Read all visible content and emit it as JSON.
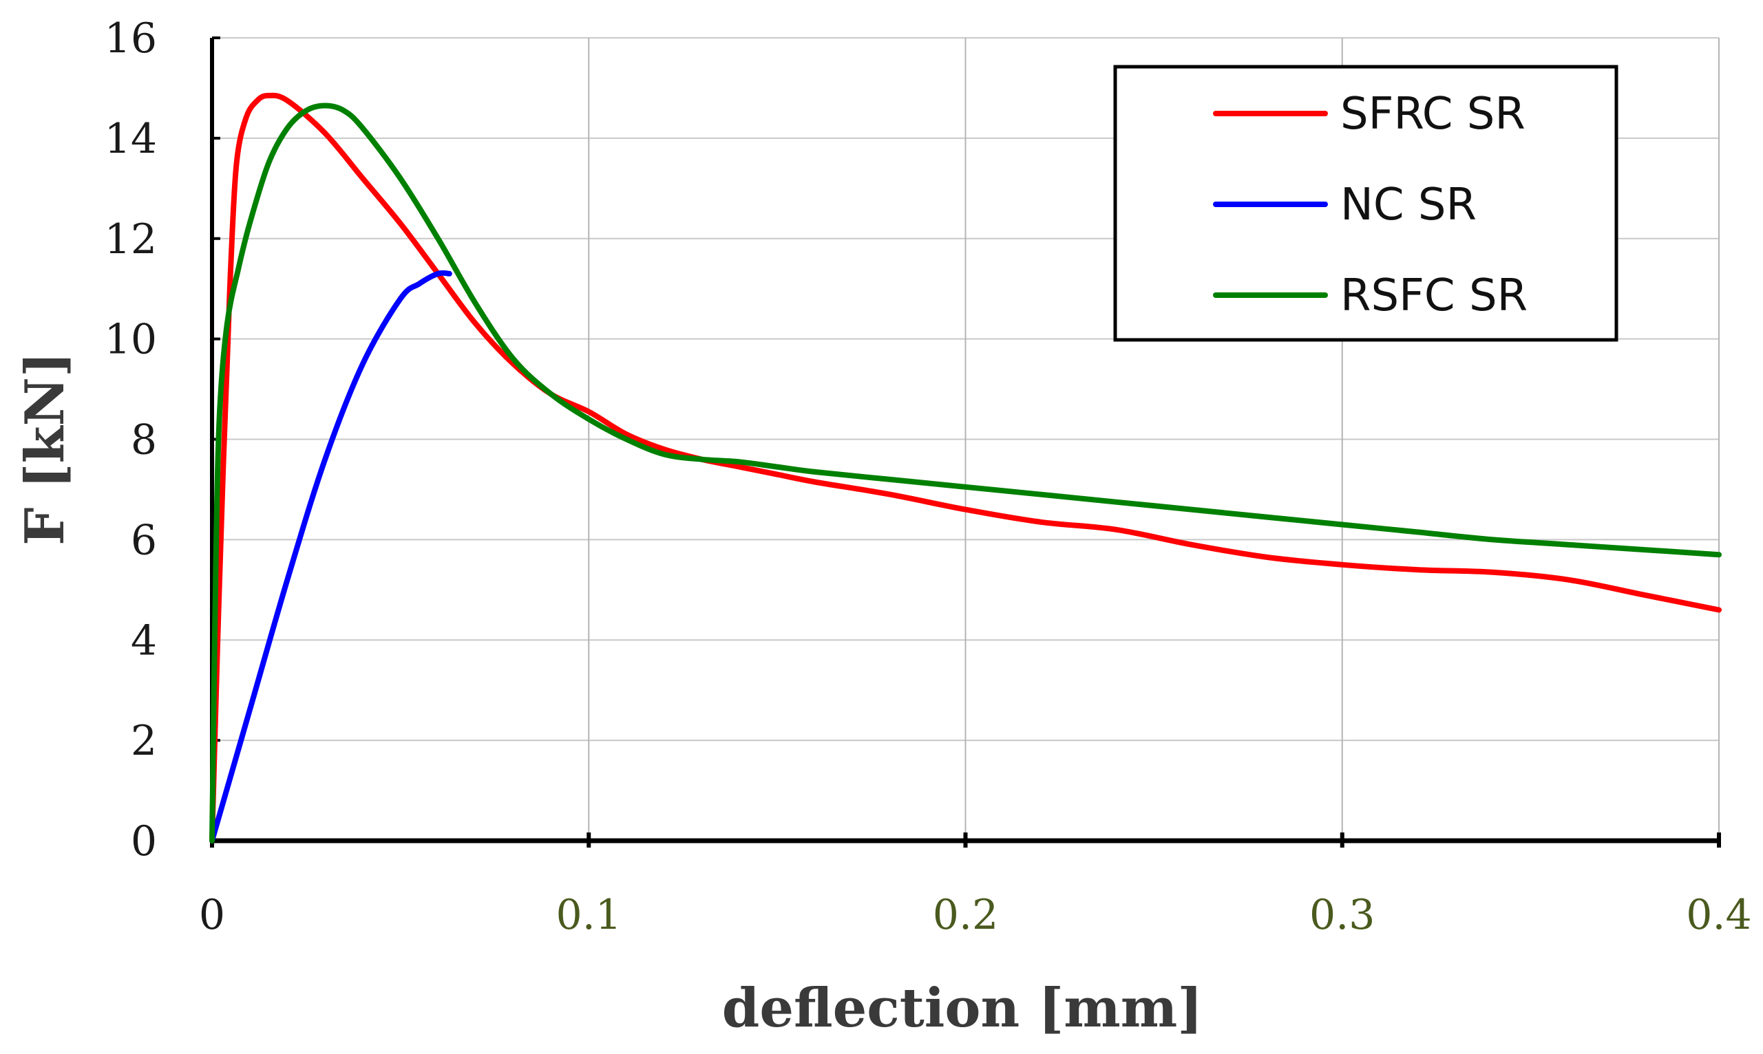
{
  "chart_data": {
    "type": "line",
    "title": "",
    "xlabel": "deflection [mm]",
    "ylabel": "F [kN]",
    "xlim": [
      0,
      0.4
    ],
    "ylim": [
      0,
      16
    ],
    "xticks": [
      "0",
      "0.1",
      "0.2",
      "0.3",
      "0.4"
    ],
    "yticks": [
      "0",
      "2",
      "4",
      "6",
      "8",
      "10",
      "12",
      "14",
      "16"
    ],
    "grid": true,
    "legend_position": "top-right",
    "series": [
      {
        "name": "SFRC SR",
        "color": "#ff0000",
        "x": [
          0,
          0.0015,
          0.003,
          0.004,
          0.005,
          0.0065,
          0.009,
          0.012,
          0.015,
          0.02,
          0.03,
          0.04,
          0.05,
          0.06,
          0.07,
          0.08,
          0.09,
          0.1,
          0.11,
          0.12,
          0.13,
          0.14,
          0.15,
          0.16,
          0.18,
          0.2,
          0.22,
          0.24,
          0.26,
          0.28,
          0.3,
          0.32,
          0.34,
          0.36,
          0.38,
          0.4
        ],
        "y": [
          0,
          4,
          7.5,
          9.5,
          11.5,
          13.5,
          14.4,
          14.75,
          14.85,
          14.75,
          14.1,
          13.2,
          12.3,
          11.3,
          10.3,
          9.5,
          8.9,
          8.55,
          8.1,
          7.8,
          7.6,
          7.45,
          7.3,
          7.15,
          6.9,
          6.6,
          6.35,
          6.2,
          5.9,
          5.65,
          5.5,
          5.4,
          5.35,
          5.2,
          4.9,
          4.6
        ]
      },
      {
        "name": "NC SR",
        "color": "#0000ff",
        "x": [
          0,
          0.01,
          0.02,
          0.03,
          0.04,
          0.05,
          0.055,
          0.06,
          0.063
        ],
        "y": [
          0,
          2.6,
          5.2,
          7.6,
          9.5,
          10.8,
          11.1,
          11.3,
          11.3
        ]
      },
      {
        "name": "RSFC SR",
        "color": "#008000",
        "x": [
          0,
          0.001,
          0.002,
          0.004,
          0.007,
          0.01,
          0.015,
          0.02,
          0.025,
          0.03,
          0.035,
          0.04,
          0.05,
          0.06,
          0.07,
          0.08,
          0.09,
          0.1,
          0.11,
          0.12,
          0.13,
          0.14,
          0.15,
          0.16,
          0.18,
          0.2,
          0.22,
          0.24,
          0.26,
          0.28,
          0.3,
          0.32,
          0.34,
          0.36,
          0.38,
          0.4
        ],
        "y": [
          0,
          5.5,
          8.5,
          10.3,
          11.4,
          12.3,
          13.5,
          14.2,
          14.55,
          14.65,
          14.55,
          14.2,
          13.2,
          12.0,
          10.7,
          9.6,
          8.9,
          8.4,
          8.0,
          7.7,
          7.6,
          7.55,
          7.45,
          7.35,
          7.2,
          7.05,
          6.9,
          6.75,
          6.6,
          6.45,
          6.3,
          6.15,
          6.0,
          5.9,
          5.8,
          5.7
        ]
      }
    ]
  }
}
